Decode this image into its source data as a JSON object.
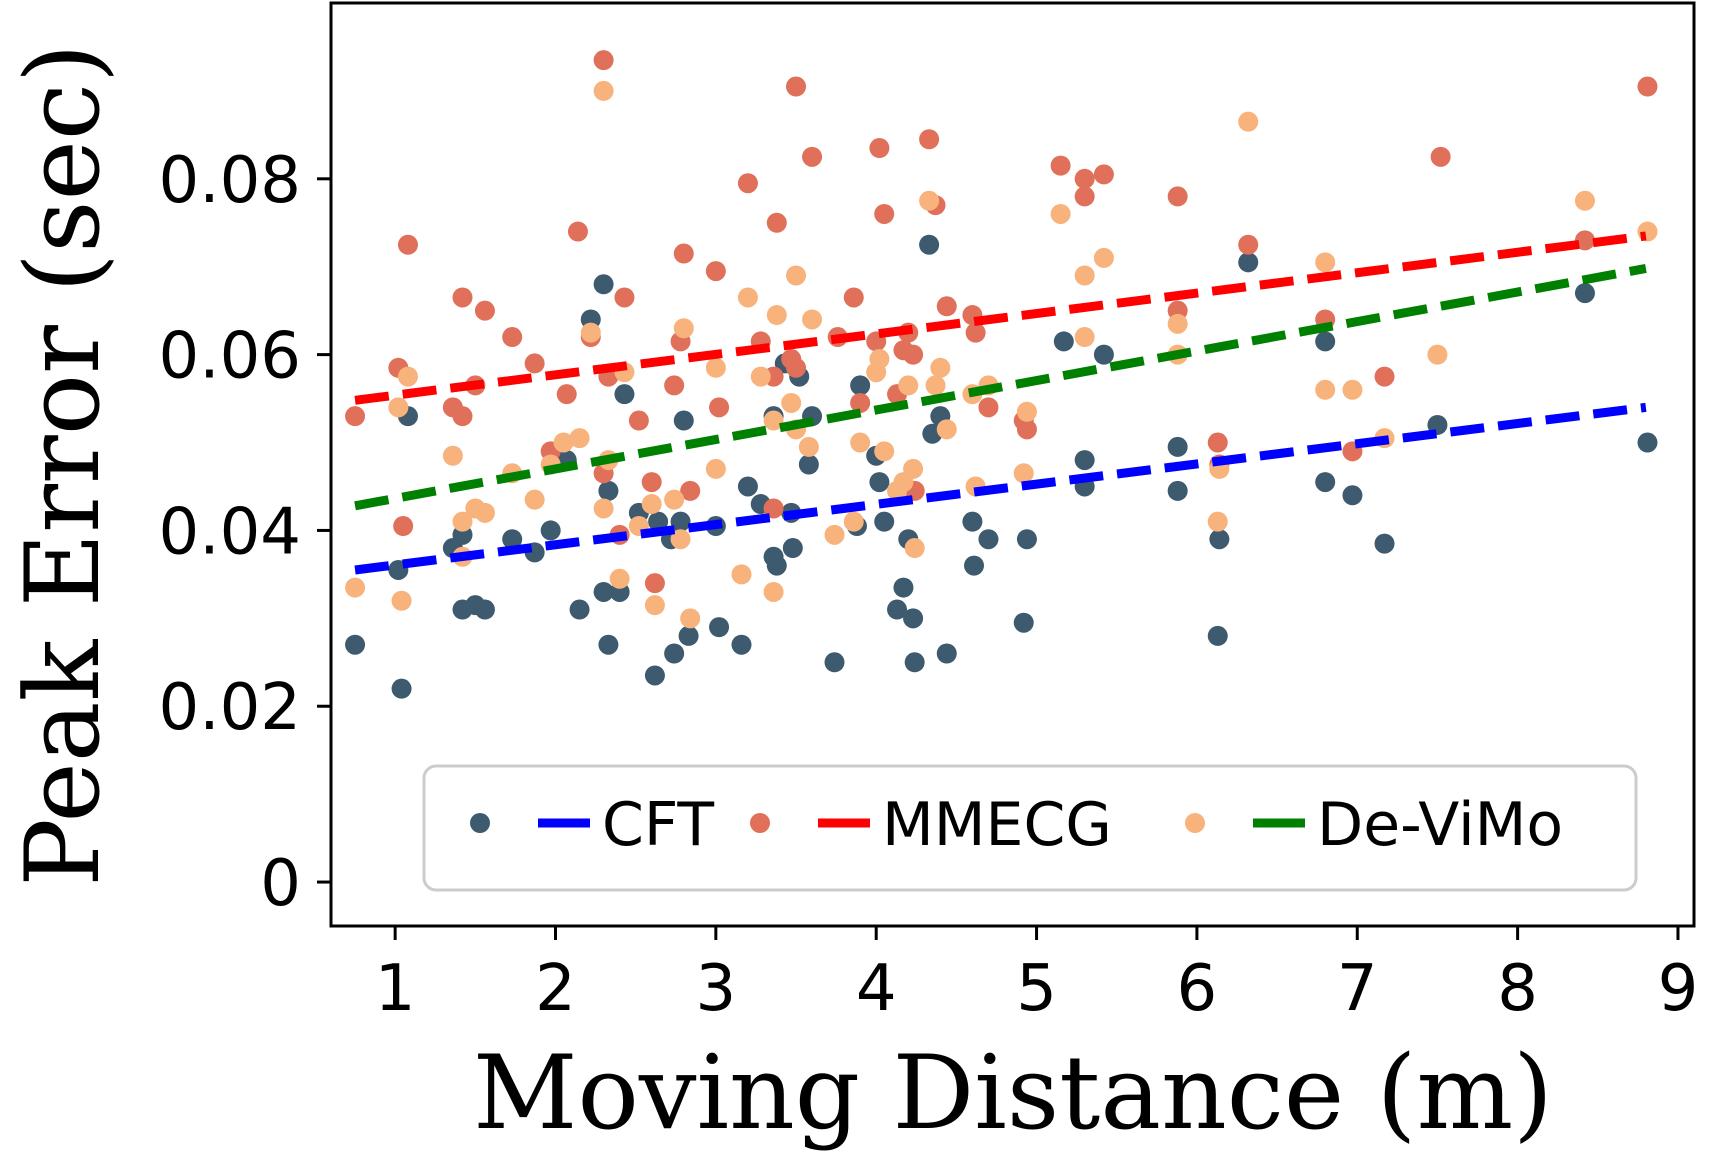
{
  "chart_data": {
    "type": "scatter",
    "xlabel": "Moving Distance (m)",
    "ylabel": "Peak Error (sec)",
    "xlim": [
      0.6,
      9.1
    ],
    "ylim": [
      -0.005,
      0.1
    ],
    "xticks": [
      1,
      2,
      3,
      4,
      5,
      6,
      7,
      8,
      9
    ],
    "xtick_labels": [
      "1",
      "2",
      "3",
      "4",
      "5",
      "6",
      "7",
      "8",
      "9"
    ],
    "yticks": [
      0,
      0.02,
      0.04,
      0.06,
      0.08
    ],
    "ytick_labels": [
      "0",
      "0.02",
      "0.04",
      "0.06",
      "0.08"
    ],
    "legend_position": "bottom-center",
    "series": [
      {
        "name": "CFT",
        "color": "#3d5a6e",
        "trend_color": "#0000ff",
        "trend": {
          "x": [
            0.75,
            8.8
          ],
          "y": [
            0.0355,
            0.054
          ]
        },
        "points": [
          [
            0.75,
            0.027
          ],
          [
            1.02,
            0.0355
          ],
          [
            1.04,
            0.022
          ],
          [
            1.08,
            0.053
          ],
          [
            1.36,
            0.038
          ],
          [
            1.42,
            0.0395
          ],
          [
            1.42,
            0.031
          ],
          [
            1.5,
            0.0315
          ],
          [
            1.56,
            0.031
          ],
          [
            1.73,
            0.039
          ],
          [
            1.87,
            0.0375
          ],
          [
            1.97,
            0.04
          ],
          [
            2.07,
            0.048
          ],
          [
            2.15,
            0.031
          ],
          [
            2.22,
            0.064
          ],
          [
            2.3,
            0.068
          ],
          [
            2.3,
            0.033
          ],
          [
            2.33,
            0.0445
          ],
          [
            2.33,
            0.027
          ],
          [
            2.4,
            0.033
          ],
          [
            2.43,
            0.0555
          ],
          [
            2.52,
            0.042
          ],
          [
            2.62,
            0.0235
          ],
          [
            2.64,
            0.041
          ],
          [
            2.72,
            0.039
          ],
          [
            2.74,
            0.026
          ],
          [
            2.78,
            0.041
          ],
          [
            2.8,
            0.0525
          ],
          [
            2.83,
            0.028
          ],
          [
            3.0,
            0.0405
          ],
          [
            3.02,
            0.029
          ],
          [
            3.16,
            0.027
          ],
          [
            3.2,
            0.045
          ],
          [
            3.28,
            0.043
          ],
          [
            3.36,
            0.053
          ],
          [
            3.36,
            0.037
          ],
          [
            3.38,
            0.036
          ],
          [
            3.43,
            0.059
          ],
          [
            3.47,
            0.042
          ],
          [
            3.48,
            0.038
          ],
          [
            3.52,
            0.0575
          ],
          [
            3.58,
            0.0475
          ],
          [
            3.6,
            0.053
          ],
          [
            3.74,
            0.025
          ],
          [
            3.88,
            0.0405
          ],
          [
            3.9,
            0.0565
          ],
          [
            4.0,
            0.0485
          ],
          [
            4.02,
            0.0455
          ],
          [
            4.05,
            0.041
          ],
          [
            4.13,
            0.031
          ],
          [
            4.17,
            0.0335
          ],
          [
            4.2,
            0.039
          ],
          [
            4.23,
            0.03
          ],
          [
            4.24,
            0.025
          ],
          [
            4.33,
            0.0725
          ],
          [
            4.35,
            0.051
          ],
          [
            4.4,
            0.053
          ],
          [
            4.44,
            0.026
          ],
          [
            4.6,
            0.041
          ],
          [
            4.61,
            0.036
          ],
          [
            4.7,
            0.039
          ],
          [
            4.92,
            0.0295
          ],
          [
            4.94,
            0.039
          ],
          [
            5.17,
            0.0615
          ],
          [
            5.3,
            0.048
          ],
          [
            5.3,
            0.045
          ],
          [
            5.42,
            0.06
          ],
          [
            5.88,
            0.0445
          ],
          [
            5.88,
            0.0495
          ],
          [
            6.13,
            0.028
          ],
          [
            6.14,
            0.039
          ],
          [
            6.32,
            0.0705
          ],
          [
            6.8,
            0.0615
          ],
          [
            6.8,
            0.0455
          ],
          [
            6.97,
            0.044
          ],
          [
            7.17,
            0.0385
          ],
          [
            7.5,
            0.052
          ],
          [
            8.42,
            0.067
          ],
          [
            8.81,
            0.05
          ]
        ]
      },
      {
        "name": "MMECG",
        "color": "#e0705a",
        "trend_color": "#ff0000",
        "trend": {
          "x": [
            0.75,
            8.8
          ],
          "y": [
            0.0548,
            0.0735
          ]
        },
        "points": [
          [
            0.75,
            0.053
          ],
          [
            1.02,
            0.0585
          ],
          [
            1.05,
            0.0405
          ],
          [
            1.08,
            0.0725
          ],
          [
            1.36,
            0.054
          ],
          [
            1.42,
            0.053
          ],
          [
            1.42,
            0.0665
          ],
          [
            1.5,
            0.0565
          ],
          [
            1.56,
            0.065
          ],
          [
            1.73,
            0.062
          ],
          [
            1.87,
            0.059
          ],
          [
            1.97,
            0.049
          ],
          [
            2.07,
            0.0555
          ],
          [
            2.14,
            0.074
          ],
          [
            2.22,
            0.062
          ],
          [
            2.3,
            0.0935
          ],
          [
            2.3,
            0.0465
          ],
          [
            2.33,
            0.0575
          ],
          [
            2.4,
            0.0395
          ],
          [
            2.43,
            0.0665
          ],
          [
            2.52,
            0.0525
          ],
          [
            2.6,
            0.0455
          ],
          [
            2.62,
            0.034
          ],
          [
            2.74,
            0.0565
          ],
          [
            2.78,
            0.0615
          ],
          [
            2.8,
            0.0715
          ],
          [
            2.84,
            0.0445
          ],
          [
            3.0,
            0.0695
          ],
          [
            3.02,
            0.054
          ],
          [
            3.2,
            0.0795
          ],
          [
            3.28,
            0.0615
          ],
          [
            3.36,
            0.0575
          ],
          [
            3.36,
            0.0425
          ],
          [
            3.38,
            0.075
          ],
          [
            3.47,
            0.0595
          ],
          [
            3.5,
            0.0585
          ],
          [
            3.5,
            0.0905
          ],
          [
            3.6,
            0.0825
          ],
          [
            3.76,
            0.062
          ],
          [
            3.86,
            0.0665
          ],
          [
            3.9,
            0.0545
          ],
          [
            4.0,
            0.0615
          ],
          [
            4.02,
            0.0835
          ],
          [
            4.05,
            0.076
          ],
          [
            4.13,
            0.0555
          ],
          [
            4.17,
            0.0605
          ],
          [
            4.2,
            0.0625
          ],
          [
            4.23,
            0.06
          ],
          [
            4.24,
            0.0445
          ],
          [
            4.33,
            0.0845
          ],
          [
            4.37,
            0.077
          ],
          [
            4.44,
            0.0655
          ],
          [
            4.6,
            0.0645
          ],
          [
            4.62,
            0.0625
          ],
          [
            4.7,
            0.054
          ],
          [
            4.92,
            0.0525
          ],
          [
            4.94,
            0.0515
          ],
          [
            5.15,
            0.0815
          ],
          [
            5.3,
            0.08
          ],
          [
            5.3,
            0.078
          ],
          [
            5.42,
            0.0805
          ],
          [
            5.88,
            0.065
          ],
          [
            5.88,
            0.078
          ],
          [
            6.13,
            0.05
          ],
          [
            6.14,
            0.0475
          ],
          [
            6.32,
            0.0725
          ],
          [
            6.8,
            0.064
          ],
          [
            6.97,
            0.049
          ],
          [
            7.17,
            0.0575
          ],
          [
            7.52,
            0.0825
          ],
          [
            8.42,
            0.073
          ],
          [
            8.81,
            0.0905
          ]
        ]
      },
      {
        "name": "De-ViMo",
        "color": "#f8b27c",
        "trend_color": "#008000",
        "trend": {
          "x": [
            0.75,
            8.8
          ],
          "y": [
            0.0428,
            0.0698
          ]
        },
        "points": [
          [
            0.75,
            0.0335
          ],
          [
            1.02,
            0.054
          ],
          [
            1.04,
            0.032
          ],
          [
            1.08,
            0.0575
          ],
          [
            1.36,
            0.0485
          ],
          [
            1.42,
            0.037
          ],
          [
            1.42,
            0.041
          ],
          [
            1.5,
            0.0425
          ],
          [
            1.56,
            0.042
          ],
          [
            1.73,
            0.0465
          ],
          [
            1.87,
            0.0435
          ],
          [
            1.97,
            0.0475
          ],
          [
            2.05,
            0.05
          ],
          [
            2.15,
            0.0505
          ],
          [
            2.22,
            0.0625
          ],
          [
            2.3,
            0.09
          ],
          [
            2.3,
            0.0425
          ],
          [
            2.33,
            0.048
          ],
          [
            2.4,
            0.0345
          ],
          [
            2.43,
            0.058
          ],
          [
            2.52,
            0.0405
          ],
          [
            2.6,
            0.043
          ],
          [
            2.62,
            0.0315
          ],
          [
            2.74,
            0.0435
          ],
          [
            2.78,
            0.039
          ],
          [
            2.8,
            0.063
          ],
          [
            2.84,
            0.03
          ],
          [
            3.0,
            0.0585
          ],
          [
            3.0,
            0.047
          ],
          [
            3.16,
            0.035
          ],
          [
            3.2,
            0.0665
          ],
          [
            3.28,
            0.0575
          ],
          [
            3.36,
            0.0525
          ],
          [
            3.36,
            0.033
          ],
          [
            3.38,
            0.0645
          ],
          [
            3.47,
            0.0545
          ],
          [
            3.5,
            0.0515
          ],
          [
            3.5,
            0.069
          ],
          [
            3.58,
            0.0495
          ],
          [
            3.6,
            0.064
          ],
          [
            3.74,
            0.0395
          ],
          [
            3.86,
            0.041
          ],
          [
            3.9,
            0.05
          ],
          [
            4.0,
            0.058
          ],
          [
            4.02,
            0.0595
          ],
          [
            4.05,
            0.049
          ],
          [
            4.13,
            0.0445
          ],
          [
            4.17,
            0.0455
          ],
          [
            4.2,
            0.0565
          ],
          [
            4.23,
            0.047
          ],
          [
            4.24,
            0.038
          ],
          [
            4.33,
            0.0775
          ],
          [
            4.37,
            0.0565
          ],
          [
            4.4,
            0.0585
          ],
          [
            4.44,
            0.0515
          ],
          [
            4.6,
            0.0555
          ],
          [
            4.62,
            0.045
          ],
          [
            4.7,
            0.0565
          ],
          [
            4.92,
            0.0465
          ],
          [
            4.94,
            0.0535
          ],
          [
            5.15,
            0.076
          ],
          [
            5.3,
            0.069
          ],
          [
            5.3,
            0.062
          ],
          [
            5.42,
            0.071
          ],
          [
            5.88,
            0.0635
          ],
          [
            5.88,
            0.06
          ],
          [
            6.13,
            0.041
          ],
          [
            6.14,
            0.047
          ],
          [
            6.32,
            0.0865
          ],
          [
            6.8,
            0.0705
          ],
          [
            6.8,
            0.056
          ],
          [
            6.97,
            0.056
          ],
          [
            7.17,
            0.0505
          ],
          [
            7.5,
            0.06
          ],
          [
            8.42,
            0.0775
          ],
          [
            8.81,
            0.074
          ]
        ]
      }
    ]
  }
}
